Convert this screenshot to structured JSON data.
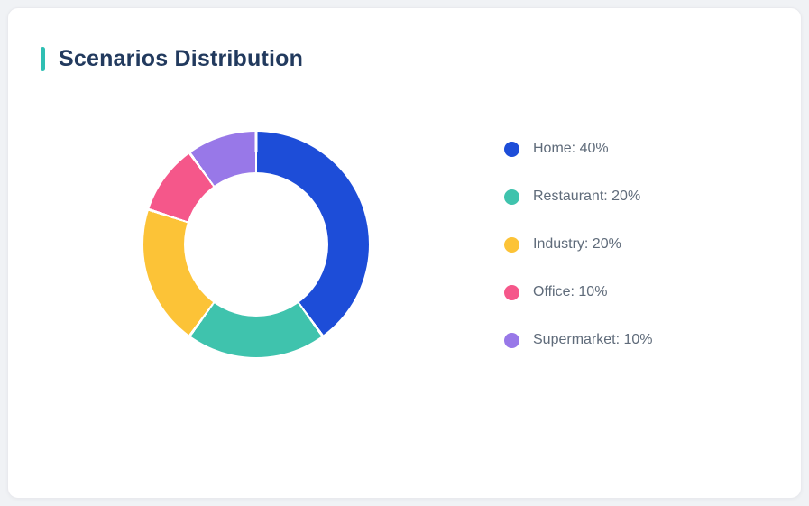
{
  "card": {
    "title": "Scenarios Distribution",
    "accent_color": "#2fbfb3"
  },
  "chart_data": {
    "type": "pie",
    "donut": true,
    "title": "Scenarios Distribution",
    "start_angle_deg": 0,
    "direction": "clockwise-from-top",
    "legend_position": "right",
    "categories": [
      "Home",
      "Restaurant",
      "Industry",
      "Office",
      "Supermarket"
    ],
    "values": [
      40,
      20,
      20,
      10,
      10
    ],
    "unit": "%",
    "colors": [
      "#1d4dd8",
      "#3fc3ad",
      "#fcc337",
      "#f5578a",
      "#9878e8"
    ],
    "legend_labels": [
      "Home: 40%",
      "Restaurant: 20%",
      "Industry: 20%",
      "Office: 10%",
      "Supermarket: 10%"
    ],
    "slice_border_color": "#ffffff"
  }
}
